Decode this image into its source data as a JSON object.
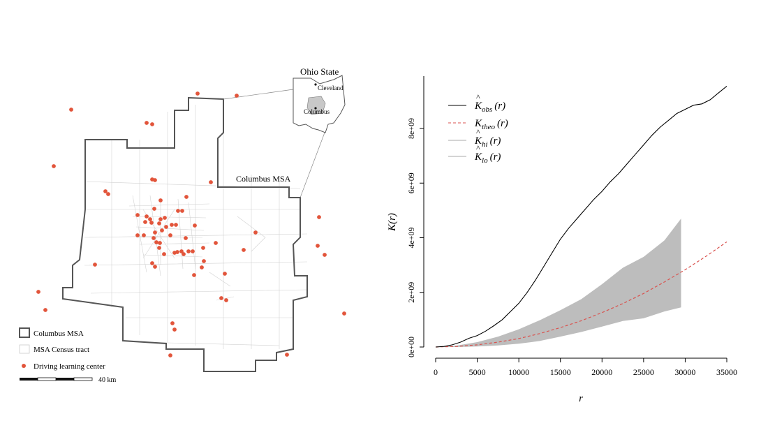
{
  "map": {
    "inset_title": "Ohio State",
    "inset_cities": [
      "Cleveland",
      "Columbus"
    ],
    "region_label": "Columbus MSA",
    "legend": [
      {
        "label": "Columbus MSA",
        "symbol": "msa-outline"
      },
      {
        "label": "MSA Census tract",
        "symbol": "tract-box"
      },
      {
        "label": "Driving learning center",
        "symbol": "point"
      }
    ],
    "scale_label": "40 km",
    "colors": {
      "point": "#e2553b",
      "boundary": "#555555",
      "tract": "#cfcfcf",
      "inset_fill": "#c8c8c8"
    }
  },
  "chart_data": {
    "type": "line",
    "xlabel": "r",
    "ylabel": "K(r)",
    "xlim": [
      0,
      35000
    ],
    "ylim": [
      0,
      10000000000.0
    ],
    "x_ticks": [
      0,
      5000,
      10000,
      15000,
      20000,
      25000,
      30000,
      35000
    ],
    "x_tick_labels": [
      "0",
      "5000",
      "10000",
      "15000",
      "20000",
      "25000",
      "30000",
      "35000"
    ],
    "y_ticks": [
      0,
      2000000000.0,
      4000000000.0,
      6000000000.0,
      8000000000.0
    ],
    "y_tick_labels": [
      "0e+00",
      "2e+09",
      "4e+09",
      "6e+09",
      "8e+09"
    ],
    "legend_position": "top-left",
    "legend": [
      {
        "base": "K",
        "hat": true,
        "sub": "obs",
        "arg": "(r)",
        "style": "solid",
        "color": "#000000"
      },
      {
        "base": "K",
        "hat": false,
        "sub": "theo",
        "arg": "(r)",
        "style": "dashed",
        "color": "#d9534f"
      },
      {
        "base": "K",
        "hat": true,
        "sub": "hi",
        "arg": "(r)",
        "style": "band",
        "color": "#a9a9a9"
      },
      {
        "base": "K",
        "hat": true,
        "sub": "lo",
        "arg": "(r)",
        "style": "band",
        "color": "#a9a9a9"
      }
    ],
    "series": [
      {
        "key": "obs",
        "x": [
          0,
          1000,
          2000,
          3000,
          4000,
          5000,
          6000,
          7000,
          8000,
          9000,
          10000,
          11000,
          12000,
          13000,
          14000,
          15000,
          16000,
          17000,
          18000,
          19000,
          20000,
          21000,
          22000,
          23000,
          24000,
          25000,
          26000,
          27000,
          28000,
          29000,
          30000,
          31000,
          32000,
          33000,
          34000,
          35000
        ],
        "y": [
          0,
          20000000.0,
          80000000.0,
          180000000.0,
          320000000.0,
          420000000.0,
          580000000.0,
          780000000.0,
          1000000000.0,
          1300000000.0,
          1600000000.0,
          2000000000.0,
          2450000000.0,
          2950000000.0,
          3450000000.0,
          3950000000.0,
          4350000000.0,
          4700000000.0,
          5050000000.0,
          5400000000.0,
          5700000000.0,
          6050000000.0,
          6350000000.0,
          6700000000.0,
          7050000000.0,
          7400000000.0,
          7750000000.0,
          8050000000.0,
          8300000000.0,
          8550000000.0,
          8700000000.0,
          8850000000.0,
          8900000000.0,
          9050000000.0,
          9300000000.0,
          9550000000.0
        ]
      },
      {
        "key": "theo",
        "x": [
          0,
          2500,
          5000,
          7500,
          10000,
          12500,
          15000,
          17500,
          20000,
          22500,
          25000,
          27500,
          30000,
          32500,
          35000
        ],
        "y": [
          0,
          20000000.0,
          80000000.0,
          180000000.0,
          310000000.0,
          490000000.0,
          710000000.0,
          960000000.0,
          1260000000.0,
          1590000000.0,
          1960000000.0,
          2380000000.0,
          2830000000.0,
          3320000000.0,
          3850000000.0
        ]
      },
      {
        "key": "hi",
        "x": [
          0,
          2500,
          5000,
          7500,
          10000,
          12500,
          15000,
          17500,
          20000,
          22500,
          25000,
          27500,
          29500
        ],
        "y": [
          0,
          50000000.0,
          180000000.0,
          380000000.0,
          650000000.0,
          980000000.0,
          1350000000.0,
          1750000000.0,
          2300000000.0,
          2900000000.0,
          3300000000.0,
          3900000000.0,
          4700000000.0
        ]
      },
      {
        "key": "lo",
        "x": [
          0,
          2500,
          5000,
          7500,
          10000,
          12500,
          15000,
          17500,
          20000,
          22500,
          25000,
          27500,
          29500
        ],
        "y": [
          0,
          0.0,
          20000000.0,
          60000000.0,
          120000000.0,
          220000000.0,
          380000000.0,
          550000000.0,
          750000000.0,
          950000000.0,
          1050000000.0,
          1300000000.0,
          1450000000.0
        ]
      }
    ]
  }
}
